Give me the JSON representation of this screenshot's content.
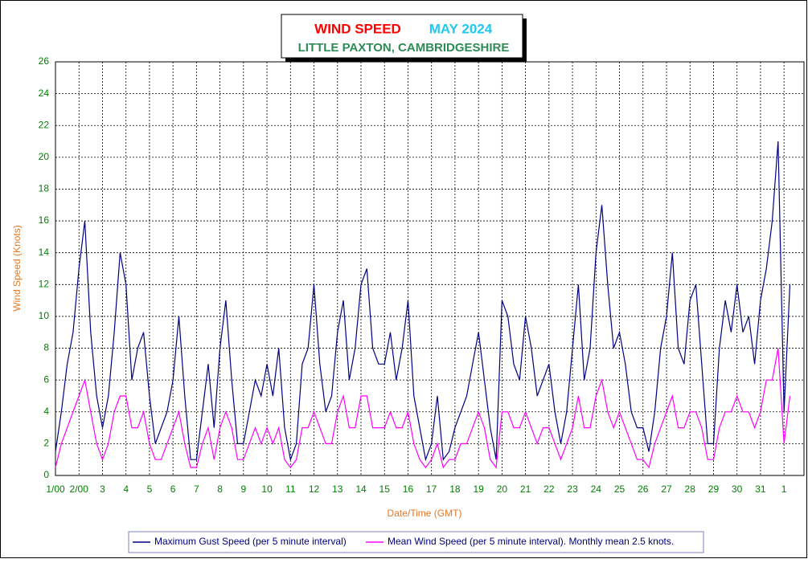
{
  "chart_data": {
    "type": "line",
    "title": "WIND SPEED",
    "period": "MAY 2024",
    "subtitle": "LITTLE PAXTON, CAMBRIDGESHIRE",
    "x_label": "Date/Time (GMT)",
    "y_label": "Wind Speed (Knots)",
    "xlim": [
      0,
      31.85
    ],
    "ylim": [
      0,
      26
    ],
    "grid": true,
    "xticks": [
      {
        "value": 0,
        "label": "1/00"
      },
      {
        "value": 1,
        "label": "2/00"
      },
      {
        "value": 2,
        "label": "3"
      },
      {
        "value": 3,
        "label": "4"
      },
      {
        "value": 4,
        "label": "5"
      },
      {
        "value": 5,
        "label": "6"
      },
      {
        "value": 6,
        "label": "7"
      },
      {
        "value": 7,
        "label": "8"
      },
      {
        "value": 8,
        "label": "9"
      },
      {
        "value": 9,
        "label": "10"
      },
      {
        "value": 10,
        "label": "11"
      },
      {
        "value": 11,
        "label": "12"
      },
      {
        "value": 12,
        "label": "13"
      },
      {
        "value": 13,
        "label": "14"
      },
      {
        "value": 14,
        "label": "15"
      },
      {
        "value": 15,
        "label": "16"
      },
      {
        "value": 16,
        "label": "17"
      },
      {
        "value": 17,
        "label": "18"
      },
      {
        "value": 18,
        "label": "19"
      },
      {
        "value": 19,
        "label": "20"
      },
      {
        "value": 20,
        "label": "21"
      },
      {
        "value": 21,
        "label": "22"
      },
      {
        "value": 22,
        "label": "23"
      },
      {
        "value": 23,
        "label": "24"
      },
      {
        "value": 24,
        "label": "25"
      },
      {
        "value": 25,
        "label": "26"
      },
      {
        "value": 26,
        "label": "27"
      },
      {
        "value": 27,
        "label": "28"
      },
      {
        "value": 28,
        "label": "29"
      },
      {
        "value": 29,
        "label": "30"
      },
      {
        "value": 30,
        "label": "31"
      },
      {
        "value": 31,
        "label": "1"
      }
    ],
    "yticks": [
      0,
      2,
      4,
      6,
      8,
      10,
      12,
      14,
      16,
      18,
      20,
      22,
      24,
      26
    ],
    "x": [
      0,
      0.25,
      0.5,
      0.75,
      1,
      1.25,
      1.5,
      1.75,
      2,
      2.25,
      2.5,
      2.75,
      3,
      3.25,
      3.5,
      3.75,
      4,
      4.25,
      4.5,
      4.75,
      5,
      5.25,
      5.5,
      5.75,
      6,
      6.25,
      6.5,
      6.75,
      7,
      7.25,
      7.5,
      7.75,
      8,
      8.25,
      8.5,
      8.75,
      9,
      9.25,
      9.5,
      9.75,
      10,
      10.25,
      10.5,
      10.75,
      11,
      11.25,
      11.5,
      11.75,
      12,
      12.25,
      12.5,
      12.75,
      13,
      13.25,
      13.5,
      13.75,
      14,
      14.25,
      14.5,
      14.75,
      15,
      15.25,
      15.5,
      15.75,
      16,
      16.25,
      16.5,
      16.75,
      17,
      17.25,
      17.5,
      17.75,
      18,
      18.25,
      18.5,
      18.75,
      19,
      19.25,
      19.5,
      19.75,
      20,
      20.25,
      20.5,
      20.75,
      21,
      21.25,
      21.5,
      21.75,
      22,
      22.25,
      22.5,
      22.75,
      23,
      23.25,
      23.5,
      23.75,
      24,
      24.25,
      24.5,
      24.75,
      25,
      25.25,
      25.5,
      25.75,
      26,
      26.25,
      26.5,
      26.75,
      27,
      27.25,
      27.5,
      27.75,
      28,
      28.25,
      28.5,
      28.75,
      29,
      29.25,
      29.5,
      29.75,
      30,
      30.25,
      30.5,
      30.75,
      31,
      31.25
    ],
    "series": [
      {
        "name": "Maximum Gust Speed (per 5 minute interval)",
        "color": "#000080",
        "values": [
          1.5,
          4,
          7,
          9,
          13,
          16,
          9,
          5,
          3,
          5,
          9,
          14,
          12,
          6,
          8,
          9,
          5,
          2,
          3,
          4,
          6,
          10,
          5,
          1,
          1,
          4,
          7,
          3,
          8,
          11,
          6,
          2,
          2,
          4,
          6,
          5,
          7,
          5,
          8,
          3,
          1,
          2,
          7,
          8,
          12,
          7,
          4,
          5,
          9,
          11,
          6,
          8,
          12,
          13,
          8,
          7,
          7,
          9,
          6,
          8,
          11,
          5,
          3,
          1,
          2,
          5,
          1,
          1.5,
          3,
          4,
          5,
          7,
          9,
          6,
          3,
          1,
          11,
          10,
          7,
          6,
          10,
          8,
          5,
          6,
          7,
          4,
          2,
          4,
          8,
          12,
          6,
          8,
          14,
          17,
          12,
          8,
          9,
          7,
          4,
          3,
          3,
          1.5,
          4,
          8,
          10,
          14,
          8,
          7,
          11,
          12,
          7,
          2,
          2,
          8,
          11,
          9,
          12,
          9,
          10,
          7,
          11,
          13,
          16,
          21,
          4,
          12
        ]
      },
      {
        "name": "Mean Wind Speed (per 5 minute interval). Monthly mean 2.5 knots.",
        "color": "#ff00ff",
        "values": [
          0.5,
          2,
          3,
          4,
          5,
          6,
          4,
          2,
          1,
          2,
          4,
          5,
          5,
          3,
          3,
          4,
          2,
          1,
          1,
          2,
          3,
          4,
          2,
          0.5,
          0.5,
          2,
          3,
          1,
          3,
          4,
          3,
          1,
          1,
          2,
          3,
          2,
          3,
          2,
          3,
          1,
          0.5,
          1,
          3,
          3,
          4,
          3,
          2,
          2,
          4,
          5,
          3,
          3,
          5,
          5,
          3,
          3,
          3,
          4,
          3,
          3,
          4,
          2,
          1,
          0.5,
          1,
          2,
          0.5,
          1,
          1,
          2,
          2,
          3,
          4,
          3,
          1,
          0.5,
          4,
          4,
          3,
          3,
          4,
          3,
          2,
          3,
          3,
          2,
          1,
          2,
          3,
          5,
          3,
          3,
          5,
          6,
          4,
          3,
          4,
          3,
          2,
          1,
          1,
          0.5,
          2,
          3,
          4,
          5,
          3,
          3,
          4,
          4,
          3,
          1,
          1,
          3,
          4,
          4,
          5,
          4,
          4,
          3,
          4,
          6,
          6,
          8,
          2,
          5
        ]
      }
    ]
  }
}
